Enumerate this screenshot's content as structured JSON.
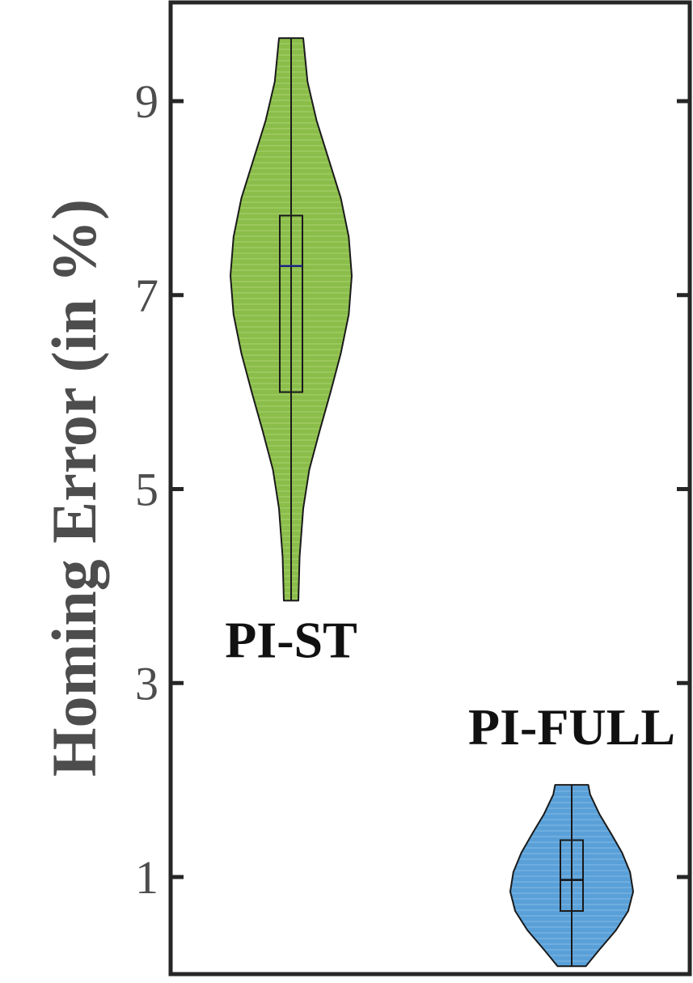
{
  "chart_data": {
    "type": "violin",
    "title": "",
    "xlabel": "",
    "ylabel": "Homing Error (in %)",
    "ylim": [
      0,
      10
    ],
    "yticks": [
      1,
      3,
      5,
      7,
      9
    ],
    "grid": false,
    "series": [
      {
        "name": "PI-ST",
        "color": "#8bbd4a",
        "min": 3.85,
        "max": 9.65,
        "q1": 6.0,
        "median": 7.3,
        "q3": 7.82,
        "median_color": "#1a237e",
        "density": [
          [
            3.85,
            0.12
          ],
          [
            4.3,
            0.14
          ],
          [
            4.8,
            0.2
          ],
          [
            5.2,
            0.3
          ],
          [
            5.6,
            0.47
          ],
          [
            6.0,
            0.65
          ],
          [
            6.4,
            0.82
          ],
          [
            6.8,
            0.95
          ],
          [
            7.2,
            1.0
          ],
          [
            7.6,
            0.95
          ],
          [
            8.0,
            0.82
          ],
          [
            8.4,
            0.62
          ],
          [
            8.8,
            0.42
          ],
          [
            9.2,
            0.27
          ],
          [
            9.65,
            0.2
          ]
        ]
      },
      {
        "name": "PI-FULL",
        "color": "#5aa0d8",
        "min": 0.08,
        "max": 1.95,
        "q1": 0.65,
        "median": 0.97,
        "q3": 1.38,
        "median_color": "#111111",
        "density": [
          [
            0.08,
            0.23
          ],
          [
            0.25,
            0.45
          ],
          [
            0.45,
            0.72
          ],
          [
            0.65,
            0.92
          ],
          [
            0.85,
            1.0
          ],
          [
            1.05,
            0.95
          ],
          [
            1.25,
            0.82
          ],
          [
            1.45,
            0.64
          ],
          [
            1.65,
            0.45
          ],
          [
            1.85,
            0.3
          ],
          [
            1.95,
            0.27
          ]
        ]
      }
    ]
  }
}
